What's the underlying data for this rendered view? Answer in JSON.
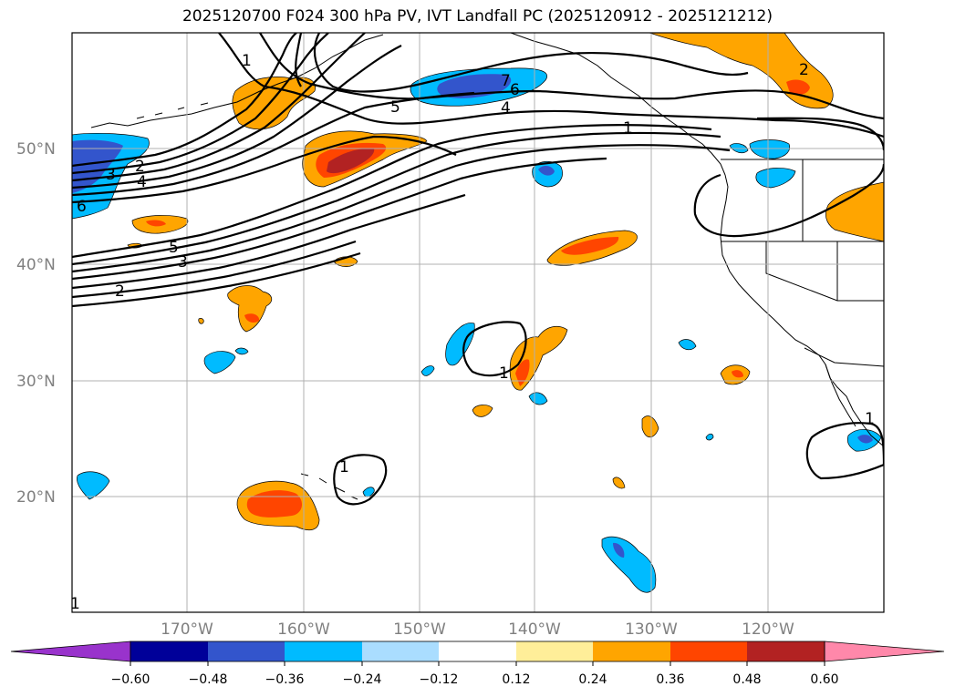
{
  "title": "2025120700 F024 300 hPa PV, IVT Landfall PC (2025120912 - 2025121212)",
  "latitudes": [
    "50°N",
    "40°N",
    "30°N",
    "20°N"
  ],
  "longitudes": [
    "170°W",
    "160°W",
    "150°W",
    "140°W",
    "130°W",
    "120°W"
  ],
  "colorbar": {
    "ticks": [
      "−0.60",
      "−0.48",
      "−0.36",
      "−0.24",
      "−0.12",
      "0.12",
      "0.24",
      "0.36",
      "0.48",
      "0.60"
    ],
    "colors": [
      "#9933cc",
      "#000099",
      "#3355cc",
      "#00bbff",
      "#aaddff",
      "#ffffff",
      "#ffee99",
      "#ffa500",
      "#ff4500",
      "#b22222",
      "#ff88aa"
    ]
  },
  "contour_labels": {
    "c1": "1",
    "c2": "2",
    "c3": "3",
    "c4": "4",
    "c5": "5",
    "c6": "6",
    "c7": "7"
  },
  "colors": {
    "positive_mid": "#ffa500",
    "positive_high": "#ff4500",
    "positive_max": "#b22222",
    "negative_mid": "#00bbff",
    "negative_high": "#3355cc",
    "grid": "#b0b0b0"
  }
}
